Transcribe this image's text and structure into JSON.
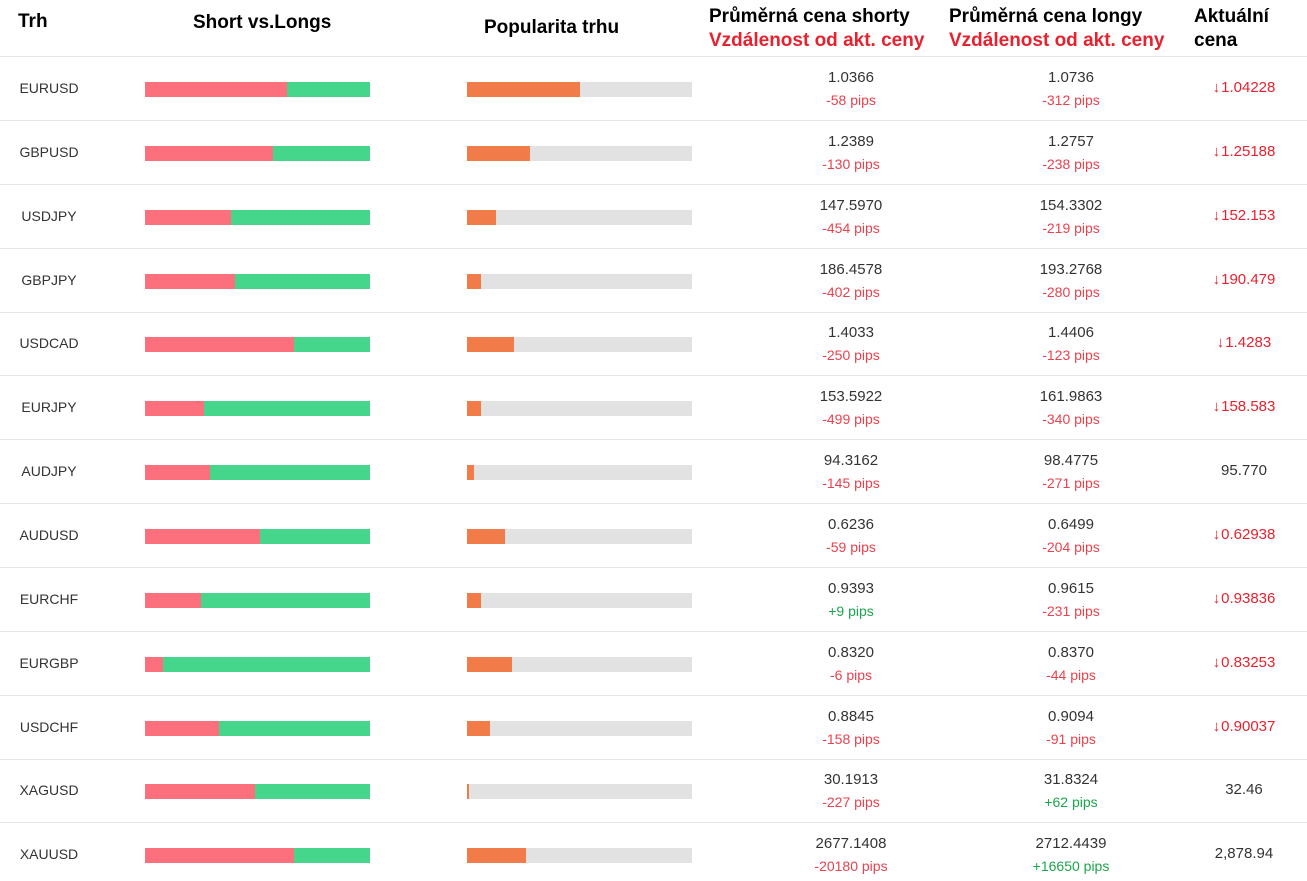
{
  "header": {
    "market": "Trh",
    "short_vs_long": "Short vs.Longs",
    "popularity": "Popularita trhu",
    "avg_short_line1": "Průměrná cena shorty",
    "avg_short_line2": "Vzdálenost od akt. ceny",
    "avg_long_line1": "Průměrná cena longy",
    "avg_long_line2": "Vzdálenost od akt. ceny",
    "current_line1": "Aktuální",
    "current_line2": "cena"
  },
  "colors": {
    "short": "#fc6f7c",
    "long": "#45d68b",
    "popularity_fill": "#f27b4a",
    "popularity_track": "#e2e2e2",
    "negative": "#e8424f",
    "positive": "#1aa64b"
  },
  "rows": [
    {
      "symbol": "EURUSD",
      "short_pct": 63,
      "popularity_pct": 50,
      "avg_short": "1.0366",
      "short_pips": "-58 pips",
      "avg_long": "1.0736",
      "long_pips": "-312 pips",
      "current": "1.04228",
      "down": true
    },
    {
      "symbol": "GBPUSD",
      "short_pct": 57,
      "popularity_pct": 28,
      "avg_short": "1.2389",
      "short_pips": "-130 pips",
      "avg_long": "1.2757",
      "long_pips": "-238 pips",
      "current": "1.25188",
      "down": true
    },
    {
      "symbol": "USDJPY",
      "short_pct": 38,
      "popularity_pct": 13,
      "avg_short": "147.5970",
      "short_pips": "-454 pips",
      "avg_long": "154.3302",
      "long_pips": "-219 pips",
      "current": "152.153",
      "down": true
    },
    {
      "symbol": "GBPJPY",
      "short_pct": 40,
      "popularity_pct": 6,
      "avg_short": "186.4578",
      "short_pips": "-402 pips",
      "avg_long": "193.2768",
      "long_pips": "-280 pips",
      "current": "190.479",
      "down": true
    },
    {
      "symbol": "USDCAD",
      "short_pct": 66,
      "popularity_pct": 21,
      "avg_short": "1.4033",
      "short_pips": "-250 pips",
      "avg_long": "1.4406",
      "long_pips": "-123 pips",
      "current": "1.4283",
      "down": true
    },
    {
      "symbol": "EURJPY",
      "short_pct": 26,
      "popularity_pct": 6,
      "avg_short": "153.5922",
      "short_pips": "-499 pips",
      "avg_long": "161.9863",
      "long_pips": "-340 pips",
      "current": "158.583",
      "down": true
    },
    {
      "symbol": "AUDJPY",
      "short_pct": 29,
      "popularity_pct": 3,
      "avg_short": "94.3162",
      "short_pips": "-145 pips",
      "avg_long": "98.4775",
      "long_pips": "-271 pips",
      "current": "95.770",
      "down": false
    },
    {
      "symbol": "AUDUSD",
      "short_pct": 51,
      "popularity_pct": 17,
      "avg_short": "0.6236",
      "short_pips": "-59 pips",
      "avg_long": "0.6499",
      "long_pips": "-204 pips",
      "current": "0.62938",
      "down": true
    },
    {
      "symbol": "EURCHF",
      "short_pct": 25,
      "popularity_pct": 6,
      "avg_short": "0.9393",
      "short_pips": "+9 pips",
      "avg_long": "0.9615",
      "long_pips": "-231 pips",
      "current": "0.93836",
      "down": true
    },
    {
      "symbol": "EURGBP",
      "short_pct": 8,
      "popularity_pct": 20,
      "avg_short": "0.8320",
      "short_pips": "-6 pips",
      "avg_long": "0.8370",
      "long_pips": "-44 pips",
      "current": "0.83253",
      "down": true
    },
    {
      "symbol": "USDCHF",
      "short_pct": 33,
      "popularity_pct": 10,
      "avg_short": "0.8845",
      "short_pips": "-158 pips",
      "avg_long": "0.9094",
      "long_pips": "-91 pips",
      "current": "0.90037",
      "down": true
    },
    {
      "symbol": "XAGUSD",
      "short_pct": 49,
      "popularity_pct": 1,
      "avg_short": "30.1913",
      "short_pips": "-227 pips",
      "avg_long": "31.8324",
      "long_pips": "+62 pips",
      "current": "32.46",
      "down": false
    },
    {
      "symbol": "XAUUSD",
      "short_pct": 66,
      "popularity_pct": 26,
      "avg_short": "2677.1408",
      "short_pips": "-20180 pips",
      "avg_long": "2712.4439",
      "long_pips": "+16650 pips",
      "current": "2,878.94",
      "down": false
    }
  ]
}
